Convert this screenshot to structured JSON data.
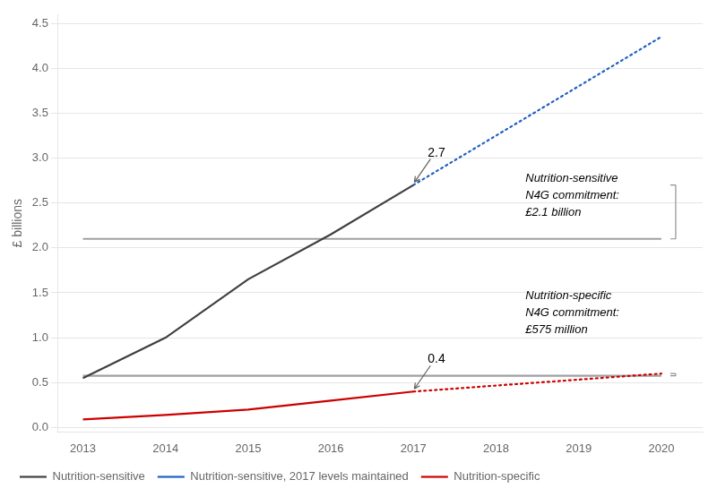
{
  "chart_data": {
    "type": "line",
    "ylabel": "£ billions",
    "xlim": [
      2012.7,
      2020.5
    ],
    "ylim": [
      -0.05,
      4.6
    ],
    "xticks": [
      2013,
      2014,
      2015,
      2016,
      2017,
      2018,
      2019,
      2020
    ],
    "yticks": [
      {
        "value": 0.0,
        "label": "0.0"
      },
      0.5,
      {
        "value": 1.0,
        "label": "1.0"
      },
      1.5,
      {
        "value": 2.0,
        "label": "2.0"
      },
      2.5,
      {
        "value": 3.0,
        "label": "3.0"
      },
      3.5,
      {
        "value": 4.0,
        "label": "4.0"
      },
      4.5
    ],
    "grid": "y",
    "legend": "bottom",
    "series": [
      {
        "name": "Nutrition-sensitive",
        "color": "#404040",
        "line_style": "solid",
        "x": [
          2013,
          2014,
          2015,
          2016,
          2017
        ],
        "values": [
          0.55,
          1.0,
          1.65,
          2.15,
          2.7
        ]
      },
      {
        "name": "Nutrition-sensitive, 2017 levels maintained",
        "color": "#2060c0",
        "line_style": "dotted",
        "x": [
          2017,
          2017.5,
          2018,
          2018.5,
          2019,
          2019.5,
          2020
        ],
        "values": [
          2.7,
          2.975,
          3.25,
          3.525,
          3.8,
          4.075,
          4.35
        ]
      },
      {
        "name": "Nutrition-specific",
        "color": "#cc0000",
        "line_style": "solid",
        "x": [
          2013,
          2014,
          2015,
          2016,
          2017
        ],
        "values": [
          0.09,
          0.14,
          0.2,
          0.3,
          0.4
        ]
      },
      {
        "color": "#cc0000",
        "line_style": "dotted",
        "x": [
          2017,
          2017.5,
          2018,
          2018.5,
          2019,
          2019.5,
          2020
        ],
        "values": [
          0.4,
          0.433,
          0.467,
          0.5,
          0.533,
          0.567,
          0.6
        ]
      },
      {
        "color": "#a0a0a0",
        "line_style": "solid",
        "x": [
          2013,
          2020
        ],
        "values": [
          2.1,
          2.1
        ]
      },
      {
        "color": "#a0a0a0",
        "line_style": "solid",
        "x": [
          2013,
          2020
        ],
        "values": [
          0.575,
          0.575
        ]
      }
    ],
    "annotations": [
      {
        "text": "2.7",
        "x": 2017,
        "y": 2.7
      },
      {
        "text": "0.4",
        "x": 2017,
        "y": 0.4
      }
    ],
    "brackets": [
      {
        "from": 2.7,
        "to": 2.1,
        "text": "Nutrition-sensitive\nN4G commitment:\n£2.1 billion"
      },
      {
        "from": 0.6,
        "to": 0.575,
        "text": "Nutrition-specific\nN4G commitment:\n£575 million"
      }
    ]
  }
}
